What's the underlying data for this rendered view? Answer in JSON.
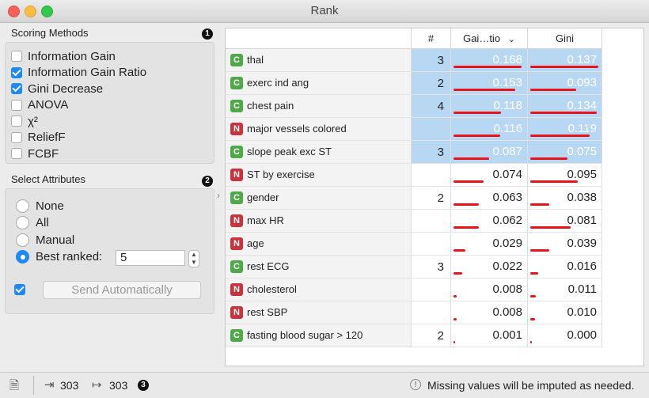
{
  "window": {
    "title": "Rank"
  },
  "scoring": {
    "title": "Scoring Methods",
    "badge": "1",
    "methods": [
      {
        "label": "Information Gain",
        "checked": false
      },
      {
        "label": "Information Gain Ratio",
        "checked": true
      },
      {
        "label": "Gini Decrease",
        "checked": true
      },
      {
        "label": "ANOVA",
        "checked": false
      },
      {
        "label": "χ²",
        "checked": false
      },
      {
        "label": "ReliefF",
        "checked": false
      },
      {
        "label": "FCBF",
        "checked": false
      }
    ]
  },
  "select": {
    "title": "Select Attributes",
    "badge": "2",
    "options": [
      {
        "label": "None",
        "selected": false
      },
      {
        "label": "All",
        "selected": false
      },
      {
        "label": "Manual",
        "selected": false
      },
      {
        "label": "Best ranked:",
        "selected": true
      }
    ],
    "best_value": "5",
    "send_label": "Send Automatically",
    "auto_checked": true
  },
  "table": {
    "headers": {
      "num": "#",
      "gain": "Gai…tio",
      "gini": "Gini"
    },
    "rows": [
      {
        "type": "C",
        "name": "thal",
        "num": "3",
        "gain": "0.168",
        "gini": "0.137",
        "selected": true
      },
      {
        "type": "C",
        "name": "exerc ind ang",
        "num": "2",
        "gain": "0.153",
        "gini": "0.093",
        "selected": true
      },
      {
        "type": "C",
        "name": "chest pain",
        "num": "4",
        "gain": "0.118",
        "gini": "0.134",
        "selected": true
      },
      {
        "type": "N",
        "name": "major vessels colored",
        "num": "",
        "gain": "0.116",
        "gini": "0.119",
        "selected": true
      },
      {
        "type": "C",
        "name": "slope peak exc ST",
        "num": "3",
        "gain": "0.087",
        "gini": "0.075",
        "selected": true
      },
      {
        "type": "N",
        "name": "ST by exercise",
        "num": "",
        "gain": "0.074",
        "gini": "0.095",
        "selected": false
      },
      {
        "type": "C",
        "name": "gender",
        "num": "2",
        "gain": "0.063",
        "gini": "0.038",
        "selected": false
      },
      {
        "type": "N",
        "name": "max HR",
        "num": "",
        "gain": "0.062",
        "gini": "0.081",
        "selected": false
      },
      {
        "type": "N",
        "name": "age",
        "num": "",
        "gain": "0.029",
        "gini": "0.039",
        "selected": false
      },
      {
        "type": "C",
        "name": "rest ECG",
        "num": "3",
        "gain": "0.022",
        "gini": "0.016",
        "selected": false
      },
      {
        "type": "N",
        "name": "cholesterol",
        "num": "",
        "gain": "0.008",
        "gini": "0.011",
        "selected": false
      },
      {
        "type": "N",
        "name": "rest SBP",
        "num": "",
        "gain": "0.008",
        "gini": "0.010",
        "selected": false
      },
      {
        "type": "C",
        "name": "fasting blood sugar > 120",
        "num": "2",
        "gain": "0.001",
        "gini": "0.000",
        "selected": false
      }
    ]
  },
  "status": {
    "input_count": "303",
    "output_count": "303",
    "badge": "3",
    "message": "Missing values will be imputed as needed."
  },
  "colors": {
    "accent": "#1e88f6",
    "bar": "#e8131b",
    "selection": "#b7d7f3",
    "continuous": "#4fa84a",
    "discrete": "#c8343d"
  }
}
